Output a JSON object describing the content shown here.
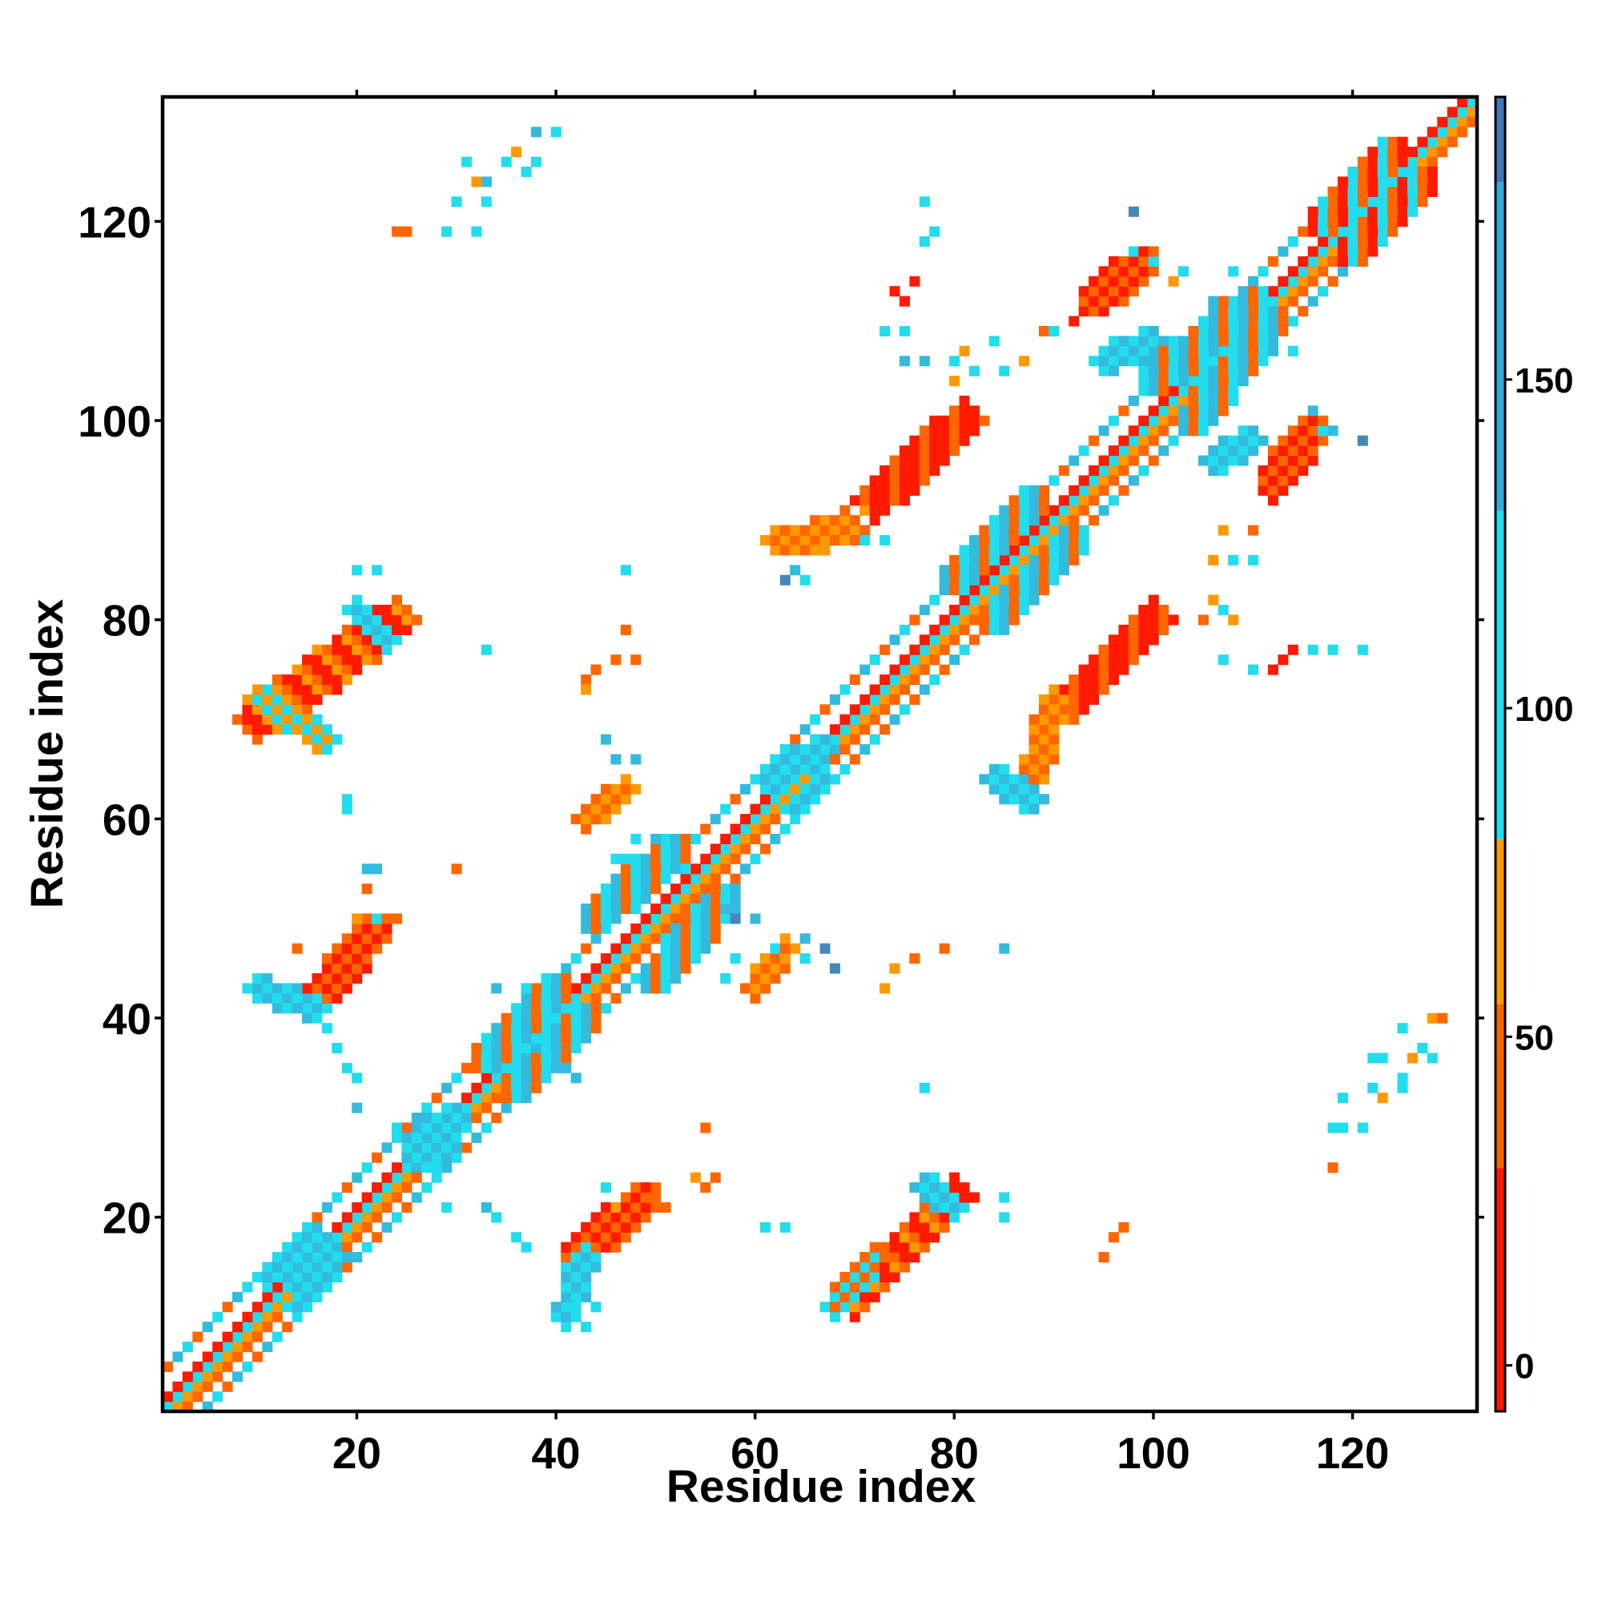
{
  "chart_data": {
    "type": "heatmap",
    "xlabel": "Residue index",
    "ylabel": "Residue index",
    "xlim": [
      1,
      132
    ],
    "ylim": [
      1,
      132
    ],
    "x_ticks": [
      20,
      40,
      60,
      80,
      100,
      120
    ],
    "y_ticks": [
      20,
      40,
      60,
      80,
      100,
      120
    ],
    "colorbar": {
      "ticks": [
        0,
        50,
        100,
        150
      ],
      "range": [
        -7,
        193
      ],
      "bands": [
        {
          "from": -7,
          "to": 30,
          "color": "#ff1a00"
        },
        {
          "from": 30,
          "to": 55,
          "color": "#ff6600"
        },
        {
          "from": 55,
          "to": 80,
          "color": "#ff9900"
        },
        {
          "from": 80,
          "to": 130,
          "color": "#22ddee"
        },
        {
          "from": 130,
          "to": 180,
          "color": "#33aadd"
        },
        {
          "from": 180,
          "to": 193,
          "color": "#4477bb"
        }
      ],
      "top_color": "#ffffff"
    },
    "colors": {
      "red": "#ff1a00",
      "orange": "#ff6600",
      "amber": "#ff9900",
      "cyan": "#22ddee",
      "sky": "#33bbdd",
      "steel": "#4488bb"
    },
    "strips": [
      {
        "x": [
          1,
          132
        ],
        "y": [
          1,
          132
        ],
        "w": 2,
        "pal": [
          "orange",
          "cyan",
          "orange",
          "red",
          "amber"
        ]
      },
      {
        "x": [
          2,
          132
        ],
        "y": [
          1,
          131
        ],
        "w": 2,
        "pal": [
          "orange",
          "red",
          "amber",
          "cyan"
        ]
      },
      {
        "x": [
          1,
          131
        ],
        "y": [
          2,
          132
        ],
        "w": 2,
        "pal": [
          "orange",
          "red",
          "amber",
          "cyan"
        ]
      },
      {
        "x": [
          5,
          128
        ],
        "y": [
          1,
          124
        ],
        "w": 1,
        "pal": [
          "cyan",
          "orange",
          "sky"
        ]
      },
      {
        "x": [
          1,
          124
        ],
        "y": [
          5,
          128
        ],
        "w": 1,
        "pal": [
          "cyan",
          "orange",
          "sky"
        ]
      }
    ],
    "blobs": [
      {
        "x1": 10,
        "y1": 70,
        "x2": 24,
        "y2": 80,
        "w": 2.2,
        "pal": [
          "red",
          "red",
          "orange",
          "amber"
        ]
      },
      {
        "x1": 10,
        "y1": 72,
        "x2": 17,
        "y2": 68,
        "w": 1.2,
        "pal": [
          "cyan",
          "amber"
        ]
      },
      {
        "x1": 20,
        "y1": 81,
        "x2": 23,
        "y2": 78,
        "w": 1.2,
        "pal": [
          "cyan",
          "sky"
        ]
      },
      {
        "x1": 16,
        "y1": 42,
        "x2": 22,
        "y2": 49,
        "w": 1.6,
        "pal": [
          "red",
          "orange"
        ]
      },
      {
        "x1": 10,
        "y1": 43,
        "x2": 16,
        "y2": 41,
        "w": 1.2,
        "pal": [
          "cyan",
          "sky"
        ]
      },
      {
        "x1": 42,
        "y1": 16,
        "x2": 49,
        "y2": 22,
        "w": 1.6,
        "pal": [
          "red",
          "orange"
        ]
      },
      {
        "x1": 41,
        "y1": 10,
        "x2": 43,
        "y2": 16,
        "w": 1.2,
        "pal": [
          "cyan",
          "sky"
        ]
      },
      {
        "x1": 70,
        "y1": 12,
        "x2": 80,
        "y2": 22,
        "w": 2.2,
        "pal": [
          "red",
          "red",
          "orange",
          "amber"
        ]
      },
      {
        "x1": 68,
        "y1": 11,
        "x2": 72,
        "y2": 16,
        "w": 1.2,
        "pal": [
          "cyan",
          "orange"
        ]
      },
      {
        "x1": 77,
        "y1": 23,
        "x2": 80,
        "y2": 21,
        "w": 1,
        "pal": [
          "cyan",
          "sky"
        ]
      },
      {
        "x1": 72,
        "y1": 92,
        "x2": 81,
        "y2": 100,
        "w": 2.2,
        "pal": [
          "red",
          "red",
          "orange"
        ]
      },
      {
        "x1": 62,
        "y1": 88,
        "x2": 70,
        "y2": 89,
        "w": 1.2,
        "pal": [
          "orange",
          "amber"
        ]
      },
      {
        "x1": 92,
        "y1": 72,
        "x2": 100,
        "y2": 80,
        "w": 2.2,
        "pal": [
          "red",
          "red",
          "orange"
        ]
      },
      {
        "x1": 88,
        "y1": 64,
        "x2": 90,
        "y2": 72,
        "w": 1.2,
        "pal": [
          "orange",
          "amber"
        ]
      },
      {
        "x1": 84,
        "y1": 64,
        "x2": 88,
        "y2": 62,
        "w": 1.2,
        "pal": [
          "cyan",
          "sky"
        ]
      },
      {
        "x1": 94,
        "y1": 112,
        "x2": 99,
        "y2": 116,
        "w": 1.6,
        "pal": [
          "red",
          "orange"
        ]
      },
      {
        "x1": 95,
        "y1": 106,
        "x2": 100,
        "y2": 108,
        "w": 1.4,
        "pal": [
          "cyan",
          "sky"
        ]
      },
      {
        "x1": 112,
        "y1": 94,
        "x2": 116,
        "y2": 99,
        "w": 1.6,
        "pal": [
          "red",
          "orange"
        ]
      },
      {
        "x1": 106,
        "y1": 96,
        "x2": 110,
        "y2": 98,
        "w": 1.4,
        "pal": [
          "cyan",
          "sky"
        ]
      },
      {
        "x1": 43,
        "y1": 60,
        "x2": 47,
        "y2": 63,
        "w": 1.4,
        "pal": [
          "orange",
          "amber"
        ]
      },
      {
        "x1": 60,
        "y1": 43,
        "x2": 63,
        "y2": 47,
        "w": 1.4,
        "pal": [
          "orange",
          "amber"
        ]
      },
      {
        "x1": 61,
        "y1": 64,
        "x2": 67,
        "y2": 67,
        "w": 1.4,
        "pal": [
          "cyan",
          "sky"
        ]
      },
      {
        "x1": 64,
        "y1": 61,
        "x2": 67,
        "y2": 64,
        "w": 1.4,
        "pal": [
          "cyan",
          "sky"
        ]
      },
      {
        "x1": 44,
        "y1": 50,
        "x2": 52,
        "y2": 57,
        "w": 1.6,
        "pal": [
          "cyan",
          "sky",
          "orange"
        ]
      },
      {
        "x1": 50,
        "y1": 44,
        "x2": 57,
        "y2": 52,
        "w": 1.6,
        "pal": [
          "cyan",
          "sky",
          "orange"
        ]
      },
      {
        "x1": 33,
        "y1": 36,
        "x2": 40,
        "y2": 43,
        "w": 1.6,
        "pal": [
          "cyan",
          "sky",
          "orange"
        ]
      },
      {
        "x1": 36,
        "y1": 33,
        "x2": 43,
        "y2": 40,
        "w": 1.6,
        "pal": [
          "cyan",
          "sky",
          "orange"
        ]
      },
      {
        "x1": 80,
        "y1": 84,
        "x2": 88,
        "y2": 92,
        "w": 1.6,
        "pal": [
          "cyan",
          "sky",
          "orange"
        ]
      },
      {
        "x1": 84,
        "y1": 80,
        "x2": 92,
        "y2": 88,
        "w": 1.6,
        "pal": [
          "cyan",
          "sky",
          "orange"
        ]
      },
      {
        "x1": 100,
        "y1": 104,
        "x2": 110,
        "y2": 112,
        "w": 1.8,
        "pal": [
          "cyan",
          "sky",
          "orange"
        ]
      },
      {
        "x1": 104,
        "y1": 100,
        "x2": 112,
        "y2": 110,
        "w": 1.8,
        "pal": [
          "cyan",
          "sky",
          "orange"
        ]
      },
      {
        "x1": 117,
        "y1": 120,
        "x2": 124,
        "y2": 127,
        "w": 1.6,
        "pal": [
          "cyan",
          "orange",
          "red"
        ]
      },
      {
        "x1": 120,
        "y1": 117,
        "x2": 127,
        "y2": 124,
        "w": 1.6,
        "pal": [
          "cyan",
          "orange",
          "red"
        ]
      },
      {
        "x1": 11,
        "y1": 14,
        "x2": 16,
        "y2": 18,
        "w": 1.4,
        "pal": [
          "cyan",
          "sky"
        ]
      },
      {
        "x1": 14,
        "y1": 11,
        "x2": 18,
        "y2": 16,
        "w": 1.4,
        "pal": [
          "cyan",
          "sky"
        ]
      },
      {
        "x1": 26,
        "y1": 27,
        "x2": 30,
        "y2": 30,
        "w": 1.6,
        "pal": [
          "cyan",
          "sky"
        ]
      },
      {
        "x1": 27,
        "y1": 26,
        "x2": 30,
        "y2": 30,
        "w": 1.6,
        "pal": [
          "cyan",
          "sky"
        ]
      }
    ],
    "points": [
      [
        38,
        129,
        "sky"
      ],
      [
        40,
        129,
        "cyan"
      ],
      [
        36,
        127,
        "amber"
      ],
      [
        35,
        126,
        "cyan"
      ],
      [
        37,
        125,
        "cyan"
      ],
      [
        33,
        124,
        "sky"
      ],
      [
        32,
        124,
        "amber"
      ],
      [
        30,
        122,
        "cyan"
      ],
      [
        33,
        122,
        "cyan"
      ],
      [
        25,
        119,
        "orange"
      ],
      [
        24,
        119,
        "orange"
      ],
      [
        29,
        119,
        "cyan"
      ],
      [
        32,
        119,
        "cyan"
      ],
      [
        31,
        126,
        "cyan"
      ],
      [
        38,
        126,
        "cyan"
      ],
      [
        77,
        122,
        "cyan"
      ],
      [
        78,
        119,
        "cyan"
      ],
      [
        77,
        118,
        "cyan"
      ],
      [
        76,
        114,
        "red"
      ],
      [
        75,
        112,
        "red"
      ],
      [
        74,
        113,
        "red"
      ],
      [
        73,
        109,
        "cyan"
      ],
      [
        75,
        109,
        "cyan"
      ],
      [
        75,
        106,
        "sky"
      ],
      [
        77,
        106,
        "sky"
      ],
      [
        80,
        106,
        "cyan"
      ],
      [
        81,
        107,
        "amber"
      ],
      [
        82,
        105,
        "cyan"
      ],
      [
        80,
        104,
        "amber"
      ],
      [
        84,
        108,
        "cyan"
      ],
      [
        85,
        105,
        "cyan"
      ],
      [
        87,
        106,
        "amber"
      ],
      [
        89,
        109,
        "orange"
      ],
      [
        90,
        109,
        "cyan"
      ],
      [
        92,
        110,
        "red"
      ],
      [
        98,
        121,
        "steel"
      ],
      [
        98,
        117,
        "cyan"
      ],
      [
        100,
        116,
        "cyan"
      ],
      [
        102,
        114,
        "amber"
      ],
      [
        103,
        115,
        "cyan"
      ],
      [
        108,
        115,
        "cyan"
      ],
      [
        106,
        112,
        "sky"
      ],
      [
        114,
        107,
        "cyan"
      ],
      [
        116,
        101,
        "sky"
      ],
      [
        117,
        99,
        "cyan"
      ],
      [
        118,
        99,
        "sky"
      ],
      [
        121,
        98,
        "steel"
      ],
      [
        112,
        92,
        "red"
      ],
      [
        111,
        93,
        "red"
      ],
      [
        107,
        89,
        "amber"
      ],
      [
        110,
        89,
        "orange"
      ],
      [
        110,
        86,
        "cyan"
      ],
      [
        106,
        86,
        "amber"
      ],
      [
        108,
        86,
        "cyan"
      ],
      [
        106,
        82,
        "amber"
      ],
      [
        107,
        81,
        "cyan"
      ],
      [
        108,
        80,
        "amber"
      ],
      [
        105,
        80,
        "orange"
      ],
      [
        107,
        76,
        "cyan"
      ],
      [
        110,
        75,
        "cyan"
      ],
      [
        112,
        75,
        "red"
      ],
      [
        113,
        76,
        "red"
      ],
      [
        114,
        77,
        "red"
      ],
      [
        116,
        77,
        "cyan"
      ],
      [
        118,
        77,
        "cyan"
      ],
      [
        121,
        77,
        "cyan"
      ],
      [
        63,
        84,
        "steel"
      ],
      [
        64,
        85,
        "sky"
      ],
      [
        65,
        84,
        "cyan"
      ],
      [
        67,
        87,
        "amber"
      ],
      [
        71,
        88,
        "cyan"
      ],
      [
        73,
        88,
        "cyan"
      ],
      [
        69,
        91,
        "orange"
      ],
      [
        71,
        91,
        "amber"
      ],
      [
        20,
        85,
        "cyan"
      ],
      [
        22,
        85,
        "cyan"
      ],
      [
        47,
        85,
        "cyan"
      ],
      [
        47,
        79,
        "orange"
      ],
      [
        33,
        77,
        "cyan"
      ],
      [
        43,
        74,
        "orange"
      ],
      [
        44,
        75,
        "orange"
      ],
      [
        46,
        76,
        "orange"
      ],
      [
        48,
        76,
        "orange"
      ],
      [
        43,
        73,
        "amber"
      ],
      [
        45,
        68,
        "sky"
      ],
      [
        46,
        66,
        "sky"
      ],
      [
        48,
        66,
        "sky"
      ],
      [
        19,
        61,
        "cyan"
      ],
      [
        19,
        62,
        "cyan"
      ],
      [
        21,
        55,
        "sky"
      ],
      [
        22,
        55,
        "sky"
      ],
      [
        21,
        53,
        "orange"
      ],
      [
        30,
        55,
        "orange"
      ],
      [
        20,
        50,
        "amber"
      ],
      [
        22,
        50,
        "cyan"
      ],
      [
        24,
        50,
        "orange"
      ],
      [
        14,
        47,
        "orange"
      ],
      [
        17,
        39,
        "cyan"
      ],
      [
        18,
        37,
        "cyan"
      ],
      [
        19,
        35,
        "cyan"
      ],
      [
        20,
        34,
        "cyan"
      ],
      [
        20,
        31,
        "sky"
      ],
      [
        46,
        56,
        "cyan"
      ],
      [
        47,
        56,
        "cyan"
      ],
      [
        48,
        58,
        "cyan"
      ],
      [
        50,
        58,
        "sky"
      ],
      [
        53,
        55,
        "cyan"
      ],
      [
        57,
        51,
        "sky"
      ],
      [
        58,
        50,
        "steel"
      ],
      [
        60,
        50,
        "sky"
      ],
      [
        62,
        47,
        "cyan"
      ],
      [
        65,
        46,
        "cyan"
      ],
      [
        67,
        47,
        "steel"
      ],
      [
        68,
        45,
        "steel"
      ],
      [
        65,
        48,
        "sky"
      ],
      [
        57,
        44,
        "cyan"
      ],
      [
        58,
        46,
        "cyan"
      ],
      [
        74,
        45,
        "amber"
      ],
      [
        76,
        46,
        "orange"
      ],
      [
        73,
        43,
        "amber"
      ],
      [
        79,
        47,
        "orange"
      ],
      [
        85,
        47,
        "sky"
      ],
      [
        54,
        24,
        "amber"
      ],
      [
        55,
        23,
        "orange"
      ],
      [
        56,
        24,
        "orange"
      ],
      [
        51,
        21,
        "orange"
      ],
      [
        50,
        22,
        "orange"
      ],
      [
        46,
        21,
        "amber"
      ],
      [
        45,
        23,
        "cyan"
      ],
      [
        29,
        21,
        "cyan"
      ],
      [
        33,
        21,
        "sky"
      ],
      [
        34,
        20,
        "cyan"
      ],
      [
        36,
        18,
        "cyan"
      ],
      [
        37,
        17,
        "cyan"
      ],
      [
        41,
        15,
        "cyan"
      ],
      [
        43,
        13,
        "cyan"
      ],
      [
        44,
        11,
        "cyan"
      ],
      [
        43,
        9,
        "cyan"
      ],
      [
        42,
        11,
        "cyan"
      ],
      [
        55,
        29,
        "orange"
      ],
      [
        61,
        19,
        "cyan"
      ],
      [
        63,
        19,
        "cyan"
      ],
      [
        77,
        33,
        "cyan"
      ],
      [
        85,
        22,
        "cyan"
      ],
      [
        85,
        20,
        "cyan"
      ],
      [
        96,
        18,
        "orange"
      ],
      [
        97,
        19,
        "orange"
      ],
      [
        95,
        16,
        "orange"
      ],
      [
        118,
        25,
        "orange"
      ],
      [
        118,
        29,
        "cyan"
      ],
      [
        119,
        29,
        "cyan"
      ],
      [
        121,
        29,
        "cyan"
      ],
      [
        119,
        32,
        "cyan"
      ],
      [
        122,
        33,
        "cyan"
      ],
      [
        123,
        32,
        "amber"
      ],
      [
        122,
        36,
        "cyan"
      ],
      [
        123,
        36,
        "cyan"
      ],
      [
        125,
        34,
        "cyan"
      ],
      [
        126,
        36,
        "amber"
      ],
      [
        127,
        37,
        "cyan"
      ],
      [
        128,
        36,
        "cyan"
      ],
      [
        125,
        39,
        "cyan"
      ],
      [
        128,
        40,
        "amber"
      ],
      [
        129,
        40,
        "orange"
      ],
      [
        125,
        33,
        "cyan"
      ],
      [
        38,
        37,
        "sky"
      ],
      [
        40,
        38,
        "sky"
      ],
      [
        41,
        35,
        "sky"
      ],
      [
        42,
        34,
        "sky"
      ],
      [
        34,
        43,
        "sky"
      ],
      [
        37,
        43,
        "cyan"
      ],
      [
        37,
        42,
        "sky"
      ],
      [
        24,
        29,
        "cyan"
      ],
      [
        25,
        27,
        "cyan"
      ],
      [
        28,
        24,
        "cyan"
      ],
      [
        28,
        25,
        "cyan"
      ]
    ]
  }
}
